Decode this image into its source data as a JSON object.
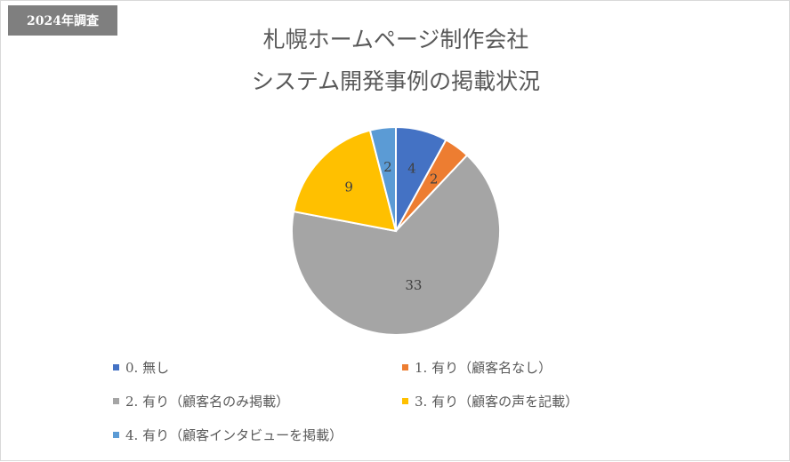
{
  "badge": "2024年調査",
  "chart_data": {
    "type": "pie",
    "title_lines": [
      "札幌ホームページ制作会社",
      "システム開発事例の掲載状況"
    ],
    "categories": [
      "0. 無し",
      "1. 有り（顧客名なし）",
      "2. 有り（顧客名のみ掲載）",
      "3. 有り（顧客の声を記載）",
      "4. 有り（顧客インタビューを掲載）"
    ],
    "values": [
      4,
      2,
      33,
      9,
      2
    ],
    "colors": [
      "#4472c4",
      "#ed7d31",
      "#a5a5a5",
      "#ffc000",
      "#5b9bd5"
    ],
    "data_labels": [
      "4",
      "2",
      "33",
      "9",
      "2"
    ],
    "legend_position": "bottom"
  }
}
